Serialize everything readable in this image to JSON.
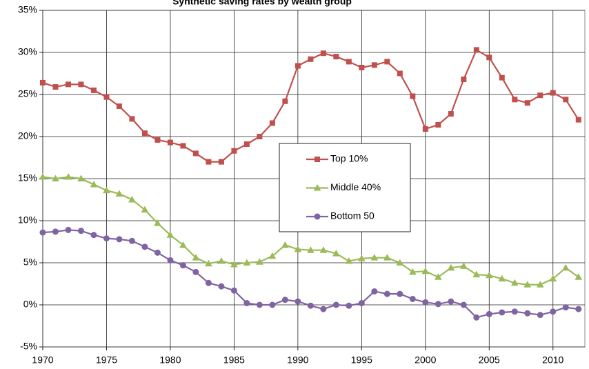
{
  "chart_data": {
    "type": "line",
    "title": "Synthetic saving rates by wealth group",
    "x": [
      1970,
      1971,
      1972,
      1973,
      1974,
      1975,
      1976,
      1977,
      1978,
      1979,
      1980,
      1981,
      1982,
      1983,
      1984,
      1985,
      1986,
      1987,
      1988,
      1989,
      1990,
      1991,
      1992,
      1993,
      1994,
      1995,
      1996,
      1997,
      1998,
      1999,
      2000,
      2001,
      2002,
      2003,
      2004,
      2005,
      2006,
      2007,
      2008,
      2009,
      2010,
      2011,
      2012
    ],
    "series": [
      {
        "name": "Top 10%",
        "color": "#c0504d",
        "marker": "square",
        "values": [
          26.4,
          25.9,
          26.2,
          26.2,
          25.5,
          24.7,
          23.6,
          22.1,
          20.4,
          19.6,
          19.3,
          18.9,
          18.0,
          17.0,
          17.0,
          18.3,
          19.1,
          20.0,
          21.6,
          24.2,
          28.4,
          29.2,
          29.9,
          29.5,
          28.9,
          28.2,
          28.5,
          28.9,
          27.5,
          24.8,
          20.9,
          21.4,
          22.7,
          26.8,
          30.3,
          29.4,
          27.0,
          24.4,
          24.0,
          24.9,
          25.2,
          24.4,
          22.0
        ]
      },
      {
        "name": "Middle 40%",
        "color": "#9bbb59",
        "marker": "triangle",
        "values": [
          15.2,
          15.0,
          15.2,
          15.0,
          14.3,
          13.6,
          13.2,
          12.5,
          11.3,
          9.7,
          8.3,
          7.1,
          5.6,
          4.9,
          5.2,
          4.8,
          5.0,
          5.1,
          5.8,
          7.1,
          6.6,
          6.5,
          6.5,
          6.1,
          5.2,
          5.5,
          5.6,
          5.6,
          5.0,
          3.9,
          4.0,
          3.3,
          4.4,
          4.6,
          3.6,
          3.5,
          3.1,
          2.6,
          2.4,
          2.4,
          3.1,
          4.4,
          3.3
        ]
      },
      {
        "name": "Bottom 50",
        "color": "#8064a2",
        "marker": "circle",
        "values": [
          8.6,
          8.7,
          8.9,
          8.8,
          8.3,
          7.9,
          7.8,
          7.6,
          6.9,
          6.2,
          5.3,
          4.7,
          3.9,
          2.6,
          2.2,
          1.7,
          0.2,
          0.0,
          0.0,
          0.6,
          0.4,
          -0.1,
          -0.5,
          0.0,
          -0.1,
          0.2,
          1.6,
          1.3,
          1.3,
          0.7,
          0.3,
          0.1,
          0.4,
          0.0,
          -1.5,
          -1.1,
          -0.9,
          -0.8,
          -1.0,
          -1.2,
          -0.8,
          -0.3,
          -0.5
        ]
      }
    ],
    "xlim": [
      1970,
      2012.5
    ],
    "xticks": [
      1970,
      1975,
      1980,
      1985,
      1990,
      1995,
      2000,
      2005,
      2010
    ],
    "ylim": [
      -5,
      35
    ],
    "yticks": [
      {
        "value": -5,
        "label": "-5%"
      },
      {
        "value": 0,
        "label": "0%"
      },
      {
        "value": 5,
        "label": "5%"
      },
      {
        "value": 10,
        "label": "10%"
      },
      {
        "value": 15,
        "label": "15%"
      },
      {
        "value": 20,
        "label": "20%"
      },
      {
        "value": 25,
        "label": "25%"
      },
      {
        "value": 30,
        "label": "30%"
      },
      {
        "value": 35,
        "label": "35%"
      }
    ],
    "grid": true,
    "legend": "center"
  }
}
